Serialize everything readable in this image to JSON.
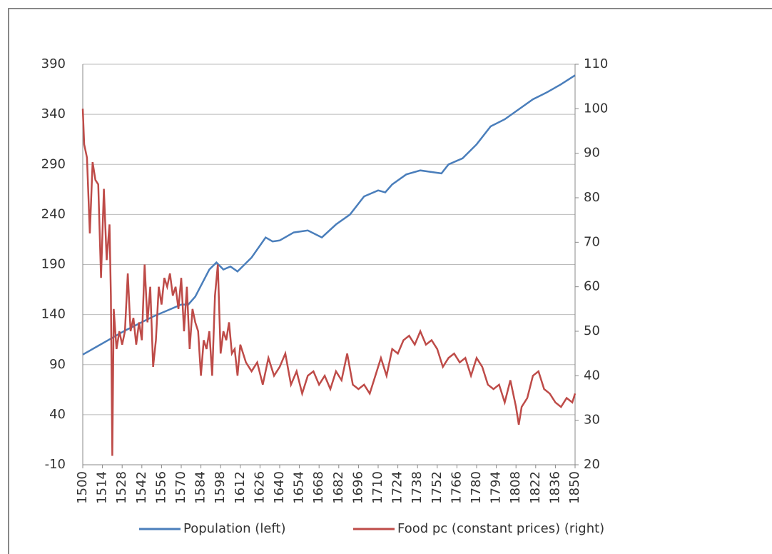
{
  "chart_data": {
    "type": "line",
    "xlim": [
      1500,
      1850
    ],
    "xticks": [
      1500,
      1514,
      1528,
      1542,
      1556,
      1570,
      1584,
      1598,
      1612,
      1626,
      1640,
      1654,
      1668,
      1682,
      1696,
      1710,
      1724,
      1738,
      1752,
      1766,
      1780,
      1794,
      1808,
      1822,
      1836,
      1850
    ],
    "ylim": [
      -10,
      390
    ],
    "yticks": [
      -10,
      40,
      90,
      140,
      190,
      240,
      290,
      340,
      390
    ],
    "y2lim": [
      20,
      110
    ],
    "y2ticks": [
      20,
      30,
      40,
      50,
      60,
      70,
      80,
      90,
      100,
      110
    ],
    "grid": true,
    "legend": "bottom",
    "series": [
      {
        "name": "Population (left)",
        "color": "#4a7ebb",
        "x": [
          1500,
          1510,
          1520,
          1530,
          1540,
          1550,
          1560,
          1570,
          1575,
          1580,
          1590,
          1595,
          1600,
          1605,
          1610,
          1620,
          1630,
          1635,
          1640,
          1650,
          1660,
          1670,
          1680,
          1690,
          1700,
          1710,
          1715,
          1720,
          1730,
          1740,
          1750,
          1755,
          1760,
          1770,
          1780,
          1790,
          1800,
          1810,
          1820,
          1830,
          1840,
          1850
        ],
        "values": [
          100,
          108,
          116,
          124,
          131,
          138,
          144,
          150,
          150,
          158,
          185,
          192,
          185,
          188,
          183,
          197,
          217,
          213,
          214,
          222,
          224,
          217,
          230,
          240,
          258,
          264,
          262,
          270,
          280,
          284,
          282,
          281,
          290,
          296,
          310,
          328,
          335,
          345,
          355,
          362,
          370,
          379
        ]
      },
      {
        "name": "Food pc (constant prices) (right)",
        "color": "#be4b48",
        "axis": "y2",
        "x": [
          1500,
          1501,
          1503,
          1505,
          1507,
          1509,
          1511,
          1513,
          1515,
          1517,
          1519,
          1520,
          1521,
          1522,
          1524,
          1526,
          1528,
          1530,
          1532,
          1534,
          1536,
          1538,
          1540,
          1542,
          1544,
          1546,
          1548,
          1550,
          1552,
          1554,
          1556,
          1558,
          1560,
          1562,
          1564,
          1566,
          1568,
          1570,
          1572,
          1574,
          1576,
          1578,
          1580,
          1582,
          1584,
          1586,
          1588,
          1590,
          1592,
          1594,
          1596,
          1598,
          1600,
          1602,
          1604,
          1606,
          1608,
          1610,
          1612,
          1616,
          1620,
          1624,
          1628,
          1632,
          1636,
          1640,
          1644,
          1648,
          1652,
          1656,
          1660,
          1664,
          1668,
          1672,
          1676,
          1680,
          1684,
          1688,
          1692,
          1696,
          1700,
          1704,
          1708,
          1712,
          1716,
          1720,
          1724,
          1728,
          1732,
          1736,
          1740,
          1744,
          1748,
          1752,
          1756,
          1760,
          1764,
          1768,
          1772,
          1776,
          1780,
          1784,
          1788,
          1792,
          1796,
          1800,
          1804,
          1808,
          1810,
          1812,
          1816,
          1820,
          1824,
          1828,
          1832,
          1836,
          1840,
          1844,
          1848,
          1850
        ],
        "values": [
          100,
          92,
          89,
          72,
          88,
          84,
          83,
          62,
          82,
          66,
          74,
          58,
          22,
          55,
          46,
          50,
          47,
          50,
          63,
          50,
          53,
          47,
          52,
          48,
          65,
          52,
          60,
          42,
          48,
          60,
          56,
          62,
          60,
          63,
          58,
          60,
          55,
          62,
          50,
          60,
          46,
          55,
          52,
          50,
          40,
          48,
          46,
          50,
          40,
          58,
          65,
          45,
          50,
          48,
          52,
          45,
          46,
          40,
          47,
          43,
          41,
          43,
          38,
          44,
          40,
          42,
          45,
          38,
          41,
          36,
          40,
          41,
          38,
          40,
          37,
          41,
          39,
          45,
          38,
          37,
          38,
          36,
          40,
          44,
          40,
          46,
          45,
          48,
          49,
          47,
          50,
          47,
          48,
          46,
          42,
          44,
          45,
          43,
          44,
          40,
          44,
          42,
          38,
          37,
          38,
          34,
          39,
          33,
          29,
          33,
          35,
          40,
          41,
          37,
          36,
          34,
          33,
          35,
          34,
          36
        ]
      }
    ]
  }
}
